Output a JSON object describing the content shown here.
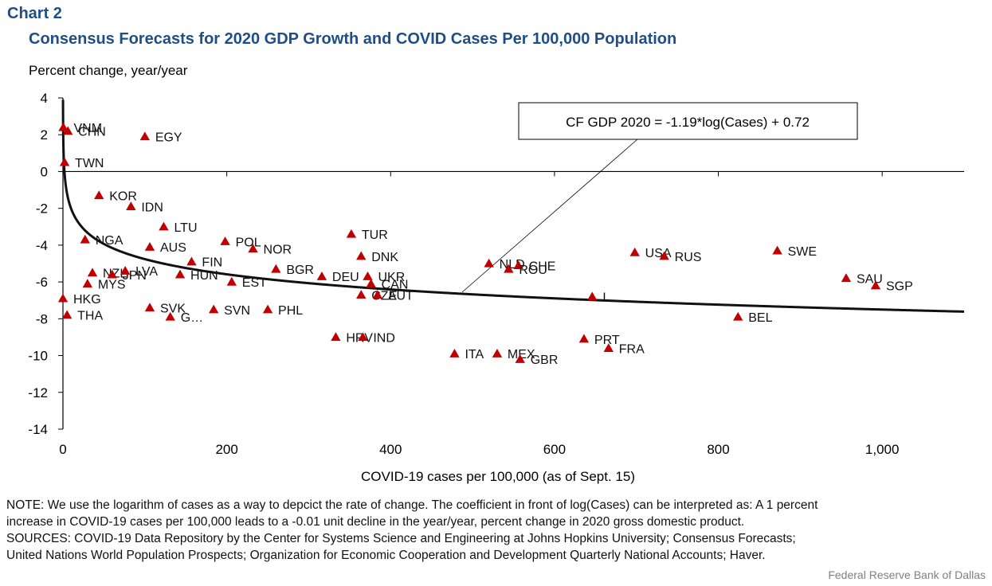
{
  "header": {
    "chart_number": "Chart 2",
    "title": "Consensus Forecasts for 2020 GDP Growth and COVID Cases Per 100,000 Population"
  },
  "chart_data": {
    "type": "scatter",
    "title": "Consensus Forecasts for 2020 GDP Growth and COVID Cases Per 100,000 Population",
    "xlabel": "COVID-19 cases per 100,000 (as of Sept. 15)",
    "ylabel": "Percent change, year/year",
    "xlim": [
      0,
      1100
    ],
    "ylim": [
      -14,
      4
    ],
    "x_ticks": [
      0,
      200,
      400,
      600,
      800,
      1000
    ],
    "x_tick_labels": [
      "0",
      "200",
      "400",
      "600",
      "800",
      "1,000"
    ],
    "y_ticks": [
      4,
      2,
      0,
      -2,
      -4,
      -6,
      -8,
      -10,
      -12,
      -14
    ],
    "y_tick_labels": [
      "4",
      "2",
      "0",
      "-2",
      "-4",
      "-6",
      "-8",
      "-10",
      "-12",
      "-14"
    ],
    "marker_color": "#c00000",
    "trend": {
      "label": "CF GDP 2020 = -1.19*log(Cases) + 0.72",
      "coef": -1.19,
      "intercept": 0.72
    },
    "points": [
      {
        "label": "VNM",
        "x": 0.5,
        "y": 2.4
      },
      {
        "label": "CHN",
        "x": 6,
        "y": 2.2
      },
      {
        "label": "EGY",
        "x": 100,
        "y": 1.9
      },
      {
        "label": "TWN",
        "x": 2,
        "y": 0.5
      },
      {
        "label": "KOR",
        "x": 44,
        "y": -1.3
      },
      {
        "label": "IDN",
        "x": 83,
        "y": -1.9
      },
      {
        "label": "LTU",
        "x": 123,
        "y": -3.0
      },
      {
        "label": "NGA",
        "x": 27,
        "y": -3.7
      },
      {
        "label": "AUS",
        "x": 106,
        "y": -4.1
      },
      {
        "label": "POL",
        "x": 198,
        "y": -3.8
      },
      {
        "label": "NOR",
        "x": 232,
        "y": -4.2
      },
      {
        "label": "TUR",
        "x": 352,
        "y": -3.4
      },
      {
        "label": "DNK",
        "x": 364,
        "y": -4.6
      },
      {
        "label": "FIN",
        "x": 157,
        "y": -4.9
      },
      {
        "label": "NZL",
        "x": 36,
        "y": -5.5
      },
      {
        "label": "JPN",
        "x": 60,
        "y": -5.6
      },
      {
        "label": "LVA",
        "x": 76,
        "y": -5.4
      },
      {
        "label": "MYS",
        "x": 30,
        "y": -6.1
      },
      {
        "label": "HUN",
        "x": 143,
        "y": -5.6
      },
      {
        "label": "BGR",
        "x": 260,
        "y": -5.3
      },
      {
        "label": "EST",
        "x": 206,
        "y": -6.0
      },
      {
        "label": "DEU",
        "x": 316,
        "y": -5.7
      },
      {
        "label": "UKR",
        "x": 372,
        "y": -5.7
      },
      {
        "label": "CAN",
        "x": 376,
        "y": -6.1
      },
      {
        "label": "CZE",
        "x": 364,
        "y": -6.7
      },
      {
        "label": "AUT",
        "x": 384,
        "y": -6.7
      },
      {
        "label": "NLD",
        "x": 520,
        "y": -5.0
      },
      {
        "label": "CHE",
        "x": 556,
        "y": -5.1
      },
      {
        "label": "ROU",
        "x": 544,
        "y": -5.3
      },
      {
        "label": "USA",
        "x": 698,
        "y": -4.4
      },
      {
        "label": "RUS",
        "x": 734,
        "y": -4.6
      },
      {
        "label": "SWE",
        "x": 872,
        "y": -4.3
      },
      {
        "label": "SAU",
        "x": 956,
        "y": -5.8
      },
      {
        "label": "SGP",
        "x": 992,
        "y": -6.2
      },
      {
        "label": "I…",
        "x": 646,
        "y": -6.8
      },
      {
        "label": "HKG",
        "x": 0,
        "y": -6.9
      },
      {
        "label": "THA",
        "x": 5,
        "y": -7.8
      },
      {
        "label": "SVK",
        "x": 106,
        "y": -7.4
      },
      {
        "label": "G…",
        "x": 131,
        "y": -7.9
      },
      {
        "label": "SVN",
        "x": 184,
        "y": -7.5
      },
      {
        "label": "PHL",
        "x": 250,
        "y": -7.5
      },
      {
        "label": "BEL",
        "x": 824,
        "y": -7.9
      },
      {
        "label": "HRV",
        "x": 333,
        "y": -9.0
      },
      {
        "label": "IND",
        "x": 366,
        "y": -9.0
      },
      {
        "label": "PRT",
        "x": 636,
        "y": -9.1
      },
      {
        "label": "FRA",
        "x": 666,
        "y": -9.6
      },
      {
        "label": "ITA",
        "x": 478,
        "y": -9.9
      },
      {
        "label": "MEX",
        "x": 530,
        "y": -9.9
      },
      {
        "label": "GBR",
        "x": 558,
        "y": -10.2
      }
    ]
  },
  "footer": {
    "note_1": "NOTE: We use the logarithm of cases as a way to depcict the rate of change. The coefficient in front of log(Cases) can be interpreted as: A 1 percent",
    "note_2": "increase in COVID-19 cases per 100,000 leads to a -0.01 unit decline in the year/year, percent change in 2020 gross domestic product.",
    "sources_1": "SOURCES: COVID-19 Data Repository by the Center for Systems Science and Engineering at Johns Hopkins University; Consensus Forecasts;",
    "sources_2": "United Nations World Population Prospects; Organization  for Economic  Cooperation and Development  Quarterly National Accounts;  Haver.",
    "credit": "Federal Reserve  Bank of Dallas"
  }
}
